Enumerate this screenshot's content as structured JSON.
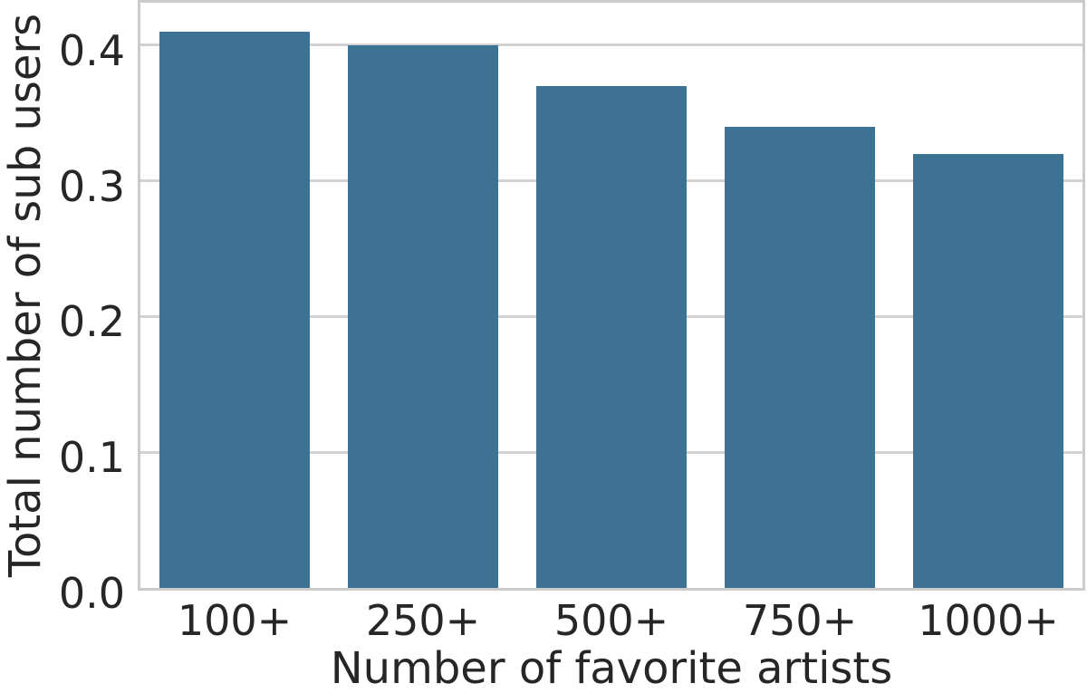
{
  "chart_data": {
    "type": "bar",
    "title": "",
    "xlabel": "Number of favorite artists",
    "ylabel": "Total number of sub users",
    "categories": [
      "100+",
      "250+",
      "500+",
      "750+",
      "1000+"
    ],
    "values": [
      0.41,
      0.4,
      0.37,
      0.34,
      0.32
    ],
    "yticks": [
      0.0,
      0.1,
      0.2,
      0.3,
      0.4
    ],
    "ytick_labels": [
      "0.0",
      "0.1",
      "0.2",
      "0.3",
      "0.4"
    ],
    "ylim": [
      0,
      0.4313
    ],
    "bar_width_fraction": 0.8,
    "grid": true,
    "legend": "none",
    "colors": {
      "bar": "#3E7294",
      "grid": "#d2d2d2",
      "spine": "#cbcbcb",
      "text": "#262626",
      "background": "#ffffff"
    }
  }
}
